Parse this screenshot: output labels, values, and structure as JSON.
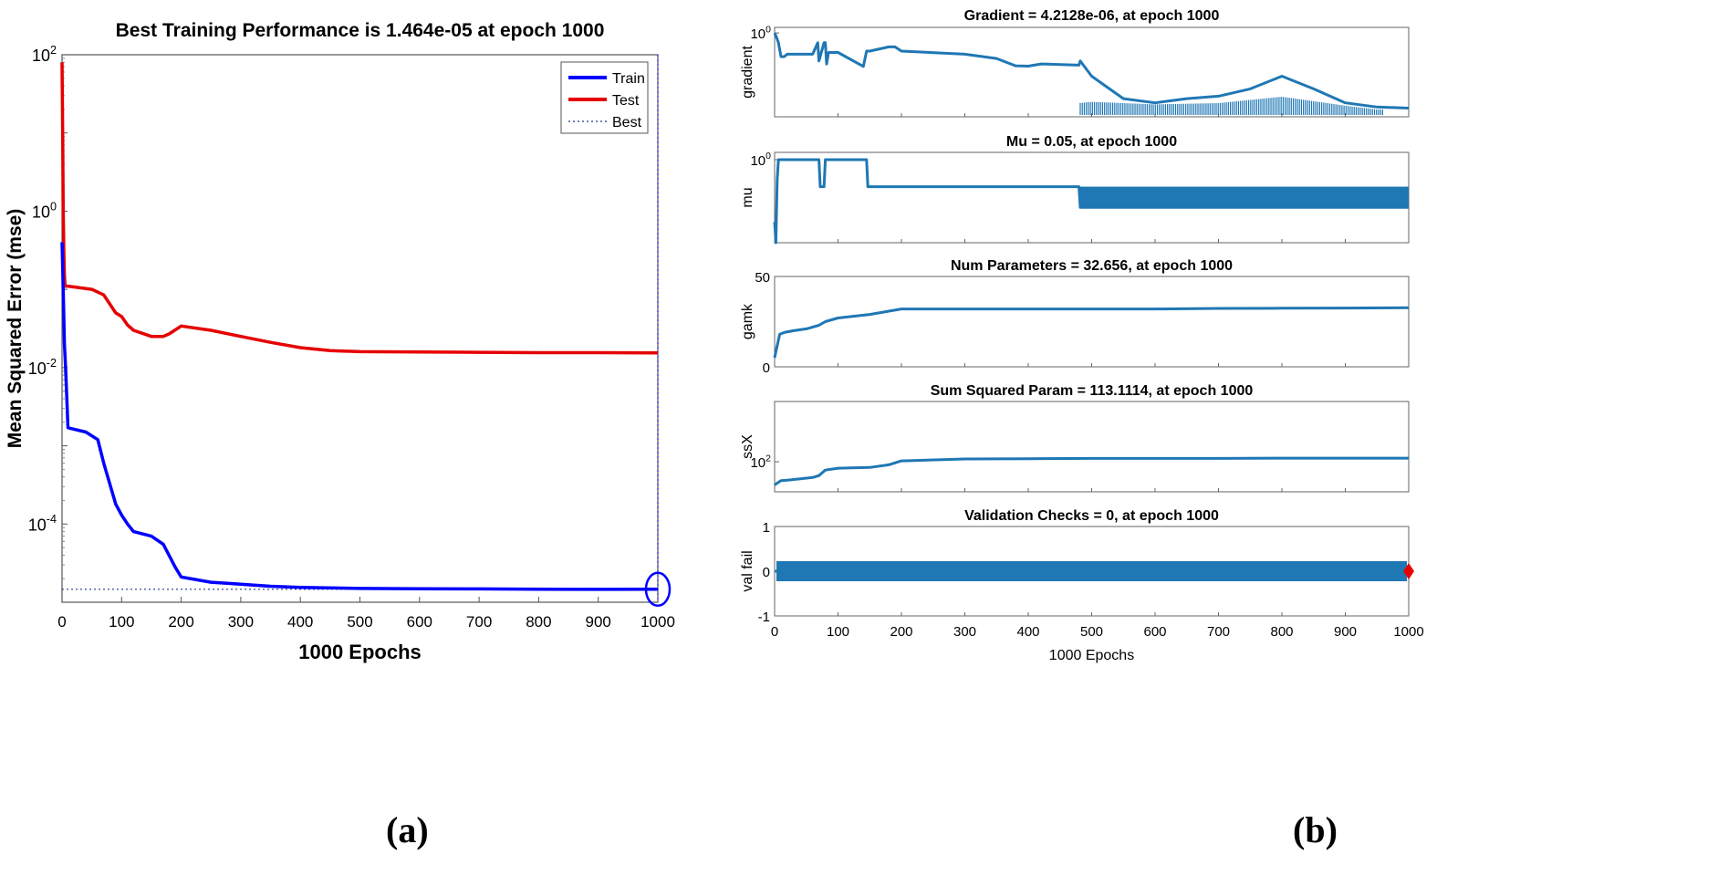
{
  "captions": {
    "a": "(a)",
    "b": "(b)"
  },
  "colors": {
    "train": "#0000ff",
    "test": "#e60000",
    "best": "#1f3a8a",
    "series_b": "#1f77b4",
    "marker": "#e60000"
  },
  "chart_data": [
    {
      "id": "a",
      "type": "line",
      "title": "Best Training Performance is 1.464e-05 at epoch 1000",
      "xlabel": "1000 Epochs",
      "ylabel": "Mean Squared Error  (mse)",
      "yscale": "log",
      "xlim": [
        0,
        1000
      ],
      "ylim_exp": [
        -5,
        2
      ],
      "xticks": [
        "0",
        "100",
        "200",
        "300",
        "400",
        "500",
        "600",
        "700",
        "800",
        "900",
        "1000"
      ],
      "yticks": [
        {
          "base": "10",
          "exp": "2",
          "value_exp": 2
        },
        {
          "base": "10",
          "exp": "0",
          "value_exp": 0
        },
        {
          "base": "10",
          "exp": "-2",
          "value_exp": -2
        },
        {
          "base": "10",
          "exp": "-4",
          "value_exp": -4
        }
      ],
      "legend": [
        "Train",
        "Test",
        "Best"
      ],
      "legend_position": "top-right",
      "best_value": 1.464e-05,
      "best_epoch": 1000,
      "series": [
        {
          "name": "Train",
          "x": [
            0,
            2,
            4,
            6,
            10,
            40,
            60,
            70,
            90,
            100,
            110,
            120,
            150,
            170,
            190,
            200,
            250,
            300,
            350,
            400,
            500,
            600,
            700,
            800,
            900,
            1000
          ],
          "y": [
            0.4,
            0.1,
            0.02,
            0.01,
            0.0017,
            0.0015,
            0.0012,
            0.0006,
            0.00018,
            0.00013,
            0.0001,
            8e-05,
            7e-05,
            5.5e-05,
            2.8e-05,
            2.1e-05,
            1.8e-05,
            1.7e-05,
            1.6e-05,
            1.55e-05,
            1.5e-05,
            1.49e-05,
            1.48e-05,
            1.47e-05,
            1.46e-05,
            1.464e-05
          ]
        },
        {
          "name": "Test",
          "x": [
            0,
            1,
            2,
            3,
            4,
            5,
            10,
            50,
            70,
            90,
            100,
            110,
            120,
            150,
            170,
            180,
            200,
            250,
            300,
            350,
            400,
            450,
            500,
            600,
            700,
            800,
            900,
            1000
          ],
          "y": [
            80,
            10,
            1,
            0.3,
            0.15,
            0.11,
            0.11,
            0.1,
            0.085,
            0.05,
            0.045,
            0.035,
            0.03,
            0.025,
            0.025,
            0.027,
            0.034,
            0.03,
            0.025,
            0.021,
            0.018,
            0.0165,
            0.016,
            0.0158,
            0.0157,
            0.0155,
            0.0155,
            0.0154
          ]
        },
        {
          "name": "Best",
          "x": [
            0,
            1000
          ],
          "y": [
            1.464e-05,
            1.464e-05
          ]
        }
      ]
    },
    {
      "id": "b1",
      "type": "line",
      "title": "Gradient = 4.2128e-06, at epoch 1000",
      "ylabel": "gradient",
      "yscale": "log",
      "yticks": [
        {
          "base": "10",
          "exp": "0",
          "value_exp": 0
        }
      ],
      "ylim_exp": [
        -6,
        0.4
      ],
      "xlim": [
        0,
        1000
      ],
      "series": [
        {
          "name": "gradient",
          "x": [
            0,
            3,
            6,
            10,
            15,
            20,
            40,
            60,
            68,
            70,
            78,
            80,
            82,
            85,
            100,
            140,
            145,
            150,
            180,
            190,
            200,
            300,
            350,
            380,
            400,
            420,
            480,
            482,
            500,
            550,
            600,
            650,
            700,
            750,
            800,
            850,
            900,
            950,
            1000
          ],
          "y": [
            1.0,
            0.5,
            0.2,
            0.02,
            0.02,
            0.03,
            0.03,
            0.03,
            0.2,
            0.01,
            0.2,
            0.2,
            0.006,
            0.04,
            0.04,
            0.004,
            0.05,
            0.05,
            0.1,
            0.1,
            0.05,
            0.03,
            0.015,
            0.0045,
            0.0042,
            0.006,
            0.005,
            0.01,
            0.0008,
            2e-05,
            1e-05,
            2e-05,
            3e-05,
            0.0001,
            0.0008,
            0.0001,
            1e-05,
            5e-06,
            4.2e-06
          ]
        },
        {
          "name": "oscillation",
          "x": [
            480,
            500,
            600,
            700,
            800,
            900,
            950
          ],
          "amp": [
            0.5,
            0.6,
            0.4,
            0.5,
            1.0,
            0.3,
            0.0
          ]
        }
      ]
    },
    {
      "id": "b2",
      "type": "line",
      "title": "Mu = 0.05, at epoch 1000",
      "ylabel": "mu",
      "yscale": "log",
      "yticks": [
        {
          "base": "10",
          "exp": "0",
          "value_exp": 0
        }
      ],
      "ylim_exp": [
        -4,
        0.35
      ],
      "xlim": [
        0,
        1000
      ],
      "series": [
        {
          "name": "mu",
          "x": [
            0,
            2,
            4,
            6,
            10,
            70,
            72,
            78,
            80,
            82,
            140,
            145,
            147,
            150,
            480,
            482,
            1000
          ],
          "y": [
            0.001,
            0.0001,
            0.1,
            1,
            1,
            1,
            0.05,
            0.05,
            1,
            1,
            1,
            1,
            0.05,
            0.05,
            0.05,
            0.005,
            0.005
          ]
        },
        {
          "name": "band",
          "x_start": 480,
          "x_end": 1000,
          "y_low": 0.005,
          "y_high": 0.05
        }
      ]
    },
    {
      "id": "b3",
      "type": "line",
      "title": "Num Parameters = 32.656, at epoch 1000",
      "ylabel": "gamk",
      "yscale": "linear",
      "ylim": [
        0,
        50
      ],
      "yticks": [
        {
          "label": "50",
          "value": 50
        },
        {
          "label": "0",
          "value": 0
        }
      ],
      "xlim": [
        0,
        1000
      ],
      "series": [
        {
          "name": "gamk",
          "x": [
            0,
            3,
            8,
            15,
            30,
            50,
            70,
            80,
            100,
            150,
            200,
            300,
            400,
            500,
            600,
            700,
            800,
            900,
            1000
          ],
          "y": [
            5,
            10,
            18,
            19,
            20,
            21,
            23,
            25,
            27,
            29,
            32,
            32,
            32,
            32,
            32,
            32.3,
            32.4,
            32.5,
            32.656
          ]
        }
      ]
    },
    {
      "id": "b4",
      "type": "line",
      "title": "Sum Squared Param = 113.1114, at epoch 1000",
      "ylabel": "ssX",
      "yscale": "log",
      "yticks": [
        {
          "base": "10",
          "exp": "2",
          "value_exp": 2
        }
      ],
      "ylim_exp": [
        1.55,
        2.9
      ],
      "xlim": [
        0,
        1000
      ],
      "series": [
        {
          "name": "ssX",
          "x": [
            0,
            10,
            20,
            60,
            70,
            80,
            100,
            150,
            180,
            200,
            300,
            400,
            500,
            600,
            700,
            800,
            900,
            1000
          ],
          "y": [
            45,
            52,
            53,
            58,
            62,
            75,
            80,
            82,
            90,
            103,
            110,
            111,
            112,
            112,
            112,
            113,
            113,
            113.1114
          ]
        }
      ]
    },
    {
      "id": "b5",
      "type": "line",
      "title": "Validation Checks = 0, at epoch 1000",
      "ylabel": "val fail",
      "yscale": "linear",
      "ylim": [
        -1,
        1
      ],
      "yticks": [
        {
          "label": "1",
          "value": 1
        },
        {
          "label": "0",
          "value": 0
        },
        {
          "label": "-1",
          "value": -1
        }
      ],
      "xlim": [
        0,
        1000
      ],
      "xticks": [
        "0",
        "100",
        "200",
        "300",
        "400",
        "500",
        "600",
        "700",
        "800",
        "900",
        "1000"
      ],
      "xlabel": "1000 Epochs",
      "series": [
        {
          "name": "val fail",
          "x": [
            0,
            1000
          ],
          "y": [
            0,
            0
          ]
        }
      ],
      "marker": {
        "x": 1000,
        "y": 0
      }
    }
  ]
}
